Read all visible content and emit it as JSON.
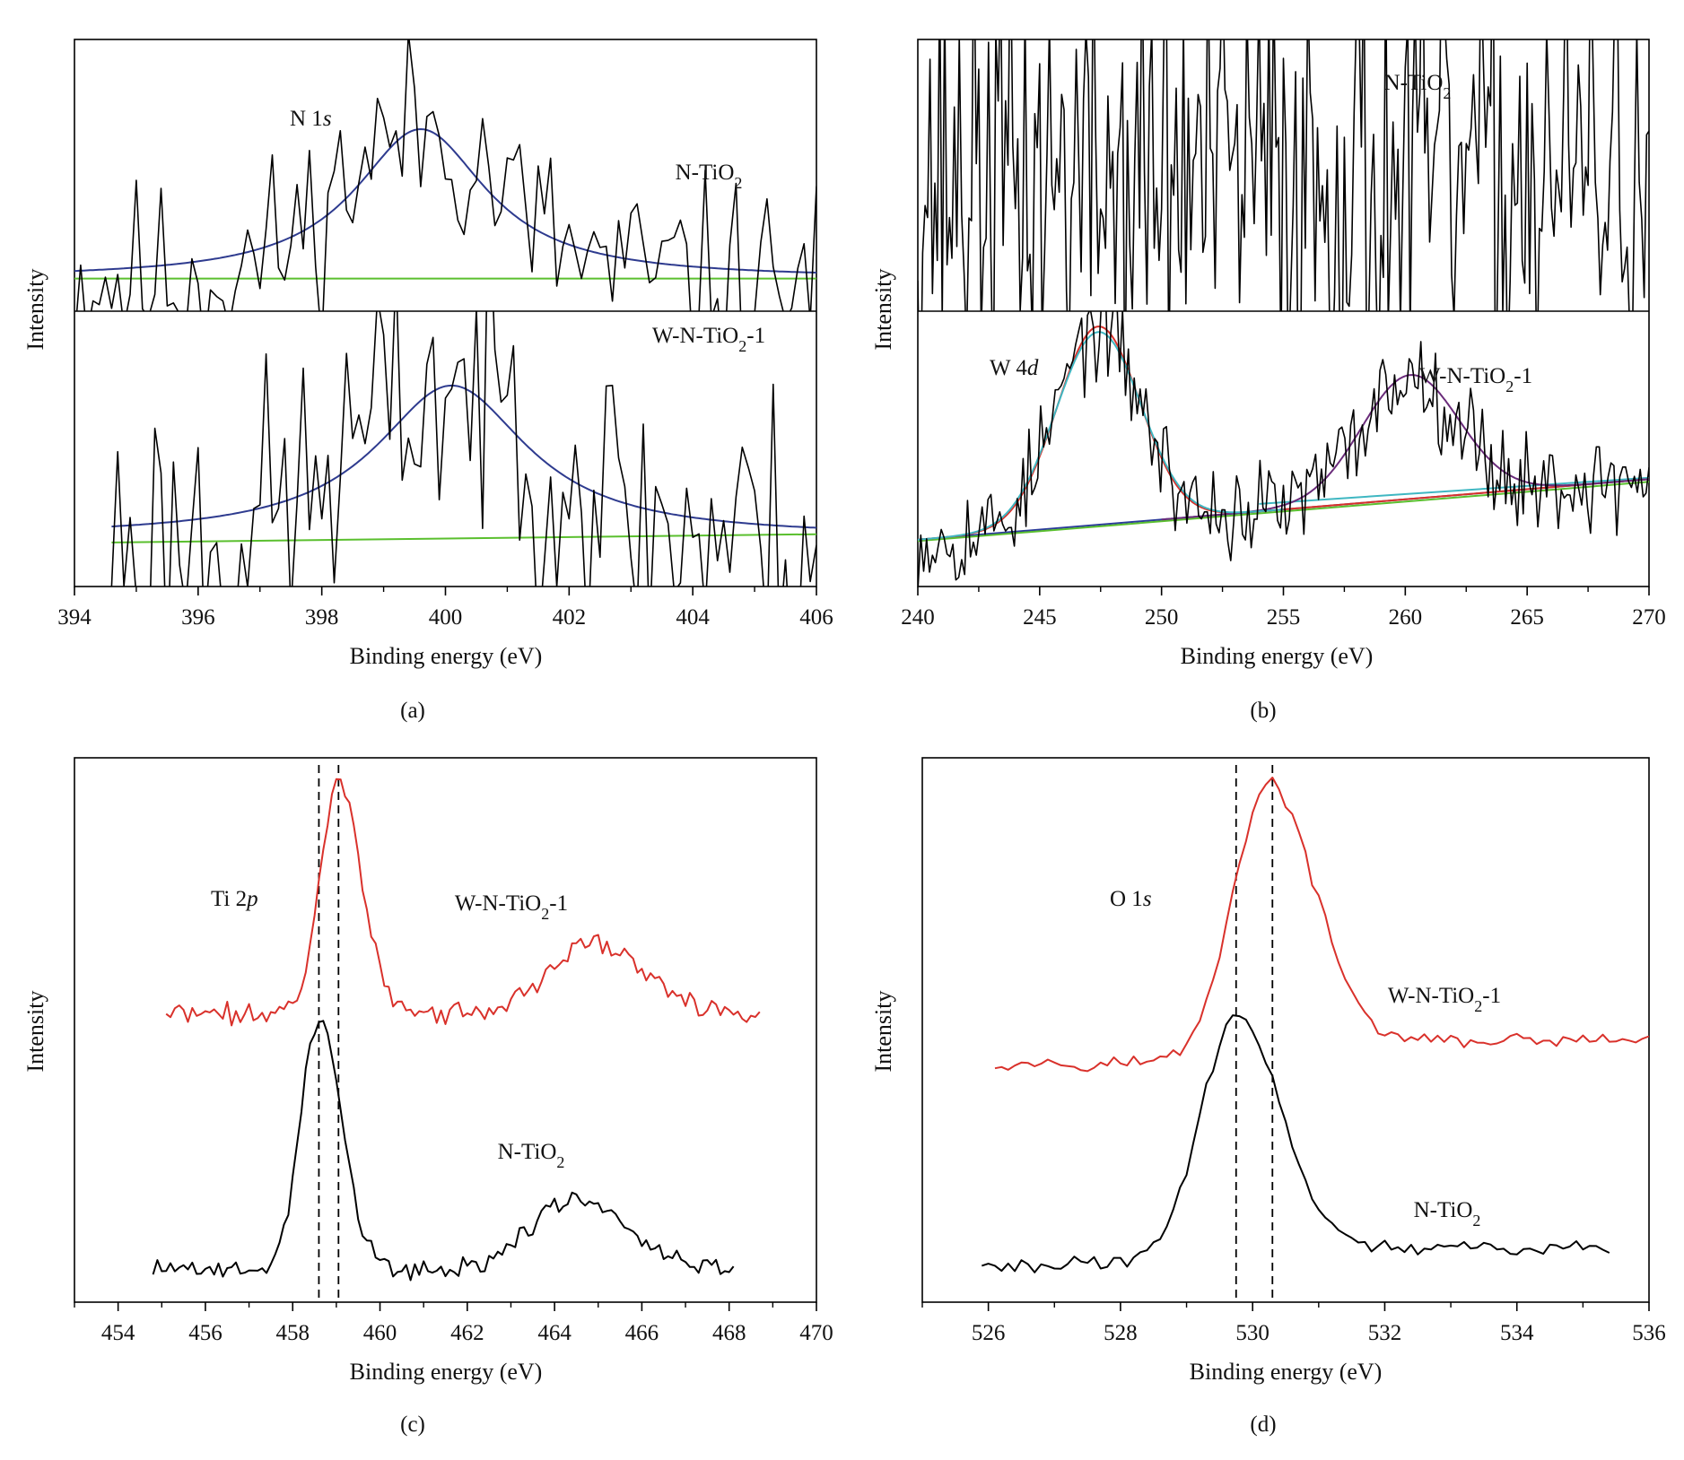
{
  "chart_data": [
    {
      "id": "a",
      "type": "line",
      "caption": "(a)",
      "xlabel": "Binding energy (eV)",
      "ylabel": "Intensity",
      "xlim": [
        394,
        406
      ],
      "xticks": [
        394,
        396,
        398,
        400,
        402,
        404,
        406
      ],
      "subpanels": [
        {
          "label_main": "N-TiO",
          "label_sub": "2",
          "label_tail": "",
          "annotation_main": "N 1",
          "annotation_italic": "s",
          "series": [
            {
              "role": "raw",
              "color": "#000000",
              "x_start": 394.0,
              "x_end": 406.0,
              "center": 399.6,
              "amplitude": 0.55,
              "width": 1.3,
              "baseline": 0.12,
              "noise": 0.18,
              "seed": 11
            },
            {
              "role": "fit",
              "color": "#2e3b8f",
              "x_start": 394.0,
              "x_end": 406.0,
              "center": 399.6,
              "amplitude": 0.55,
              "width": 1.3,
              "baseline": 0.12,
              "kind": "lorentz"
            },
            {
              "role": "background",
              "color": "#5abf2e",
              "x": [
                394.0,
                406.0
              ],
              "y": [
                0.12,
                0.12
              ]
            }
          ]
        },
        {
          "label_main": "W-N-TiO",
          "label_sub": "2",
          "label_tail": "-1",
          "annotation_main": "",
          "annotation_italic": "",
          "series": [
            {
              "role": "raw",
              "color": "#000000",
              "x_start": 394.6,
              "x_end": 406.0,
              "center": 400.1,
              "amplitude": 0.55,
              "width": 1.5,
              "baseline": 0.18,
              "noise": 0.28,
              "seed": 23
            },
            {
              "role": "fit",
              "color": "#2e3b8f",
              "x_start": 394.6,
              "x_end": 406.0,
              "center": 400.1,
              "amplitude": 0.55,
              "width": 1.5,
              "baseline": 0.18,
              "kind": "lorentz"
            },
            {
              "role": "background",
              "color": "#5abf2e",
              "x": [
                394.6,
                406.0
              ],
              "y": [
                0.16,
                0.19
              ]
            }
          ]
        }
      ]
    },
    {
      "id": "b",
      "type": "line",
      "caption": "(b)",
      "xlabel": "Binding energy (eV)",
      "ylabel": "Intensity",
      "xlim": [
        240,
        270
      ],
      "xticks": [
        240,
        245,
        250,
        255,
        260,
        265,
        270
      ],
      "subpanels": [
        {
          "label_main": "N-TiO",
          "label_sub": "2",
          "label_tail": "",
          "annotation_main": "",
          "annotation_italic": "",
          "series": [
            {
              "role": "raw",
              "color": "#000000",
              "x_start": 240.0,
              "x_end": 270.0,
              "baseline": 0.5,
              "noise": 0.42,
              "seed": 37,
              "step": 0.1
            }
          ]
        },
        {
          "label_main": "W-N-TiO",
          "label_sub": "2",
          "label_tail": "-1",
          "annotation_main": "W 4",
          "annotation_italic": "d",
          "series": [
            {
              "role": "raw",
              "color": "#000000",
              "x_start": 240.0,
              "x_end": 270.0,
              "noise": 0.09,
              "seed": 53,
              "step": 0.12,
              "peaks": [
                {
                  "center": 247.4,
                  "amplitude": 0.72,
                  "width": 1.7
                },
                {
                  "center": 260.2,
                  "amplitude": 0.45,
                  "width": 2.0
                }
              ],
              "baseline": [
                0.17,
                0.39
              ]
            },
            {
              "role": "fit",
              "color": "#d9312b",
              "x_start": 240.0,
              "x_end": 270.0,
              "peaks": [
                {
                  "center": 247.4,
                  "amplitude": 0.72,
                  "width": 1.7
                }
              ],
              "baseline": [
                0.17,
                0.39
              ],
              "tail_level": 0.37,
              "kind": "peak_envelope"
            },
            {
              "role": "fit",
              "color": "#6a2b7a",
              "x_start": 250.0,
              "x_end": 270.0,
              "peaks": [
                {
                  "center": 260.2,
                  "amplitude": 0.45,
                  "width": 2.0
                }
              ],
              "baseline": [
                0.17,
                0.39
              ],
              "kind": "peak_envelope"
            },
            {
              "role": "fit",
              "color": "#3fb7c2",
              "x_start": 240.0,
              "x_end": 255.0,
              "peaks": [
                {
                  "center": 247.4,
                  "amplitude": 0.7,
                  "width": 1.75
                }
              ],
              "baseline": [
                0.17,
                0.39
              ],
              "kind": "peak_envelope"
            },
            {
              "role": "background",
              "color": "#2b3b9a",
              "x": [
                240.0,
                270.0
              ],
              "y": [
                0.17,
                0.39
              ]
            },
            {
              "role": "background",
              "color": "#5abf2e",
              "x": [
                240.0,
                270.0
              ],
              "y": [
                0.165,
                0.38
              ]
            },
            {
              "role": "background",
              "color": "#3fb7c2",
              "x": [
                254.0,
                270.0
              ],
              "y": [
                0.3,
                0.395
              ]
            }
          ]
        }
      ]
    },
    {
      "id": "c",
      "type": "line",
      "caption": "(c)",
      "xlabel": "Binding energy (eV)",
      "ylabel": "Intensity",
      "xlim": [
        453,
        470
      ],
      "xticks": [
        454,
        456,
        458,
        460,
        462,
        464,
        466,
        468,
        470
      ],
      "annotation_main": "Ti 2",
      "annotation_italic": "p",
      "dashed_lines_x": [
        458.6,
        459.05
      ],
      "series": [
        {
          "name_main": "W-N-TiO",
          "name_sub": "2",
          "name_tail": "-1",
          "color": "#d9312b",
          "x_start": 455.1,
          "x_end": 468.7,
          "offset": 0.53,
          "noise": 0.012,
          "seed": 71,
          "peaks": [
            {
              "center": 459.05,
              "amplitude": 0.43,
              "width": 0.42
            },
            {
              "center": 464.85,
              "amplitude": 0.13,
              "width": 0.95
            }
          ]
        },
        {
          "name_main": "N-TiO",
          "name_sub": "2",
          "name_tail": "",
          "color": "#000000",
          "x_start": 454.8,
          "x_end": 468.1,
          "offset": 0.06,
          "noise": 0.012,
          "seed": 89,
          "peaks": [
            {
              "center": 458.6,
              "amplitude": 0.46,
              "width": 0.42
            },
            {
              "center": 464.4,
              "amplitude": 0.13,
              "width": 0.95
            }
          ]
        }
      ]
    },
    {
      "id": "d",
      "type": "line",
      "caption": "(d)",
      "xlabel": "Binding energy (eV)",
      "ylabel": "Intensity",
      "xlim": [
        525,
        536
      ],
      "xticks": [
        526,
        528,
        530,
        532,
        534,
        536
      ],
      "annotation_main": "O 1",
      "annotation_italic": "s",
      "dashed_lines_x": [
        529.75,
        530.3
      ],
      "series": [
        {
          "name_main": "W-N-TiO",
          "name_sub": "2",
          "name_tail": "-1",
          "color": "#d9312b",
          "x_start": 526.1,
          "x_end": 536.0,
          "offset": 0.44,
          "noise": 0.008,
          "seed": 97,
          "tail_rise": 0.04,
          "peaks": [
            {
              "center": 530.25,
              "amplitude": 0.51,
              "width": 0.55
            }
          ]
        },
        {
          "name_main": "N-TiO",
          "name_sub": "2",
          "name_tail": "",
          "color": "#000000",
          "x_start": 525.9,
          "x_end": 535.4,
          "offset": 0.07,
          "noise": 0.008,
          "seed": 113,
          "tail_rise": 0.03,
          "peaks": [
            {
              "center": 529.75,
              "amplitude": 0.45,
              "width": 0.55
            }
          ]
        }
      ]
    }
  ]
}
